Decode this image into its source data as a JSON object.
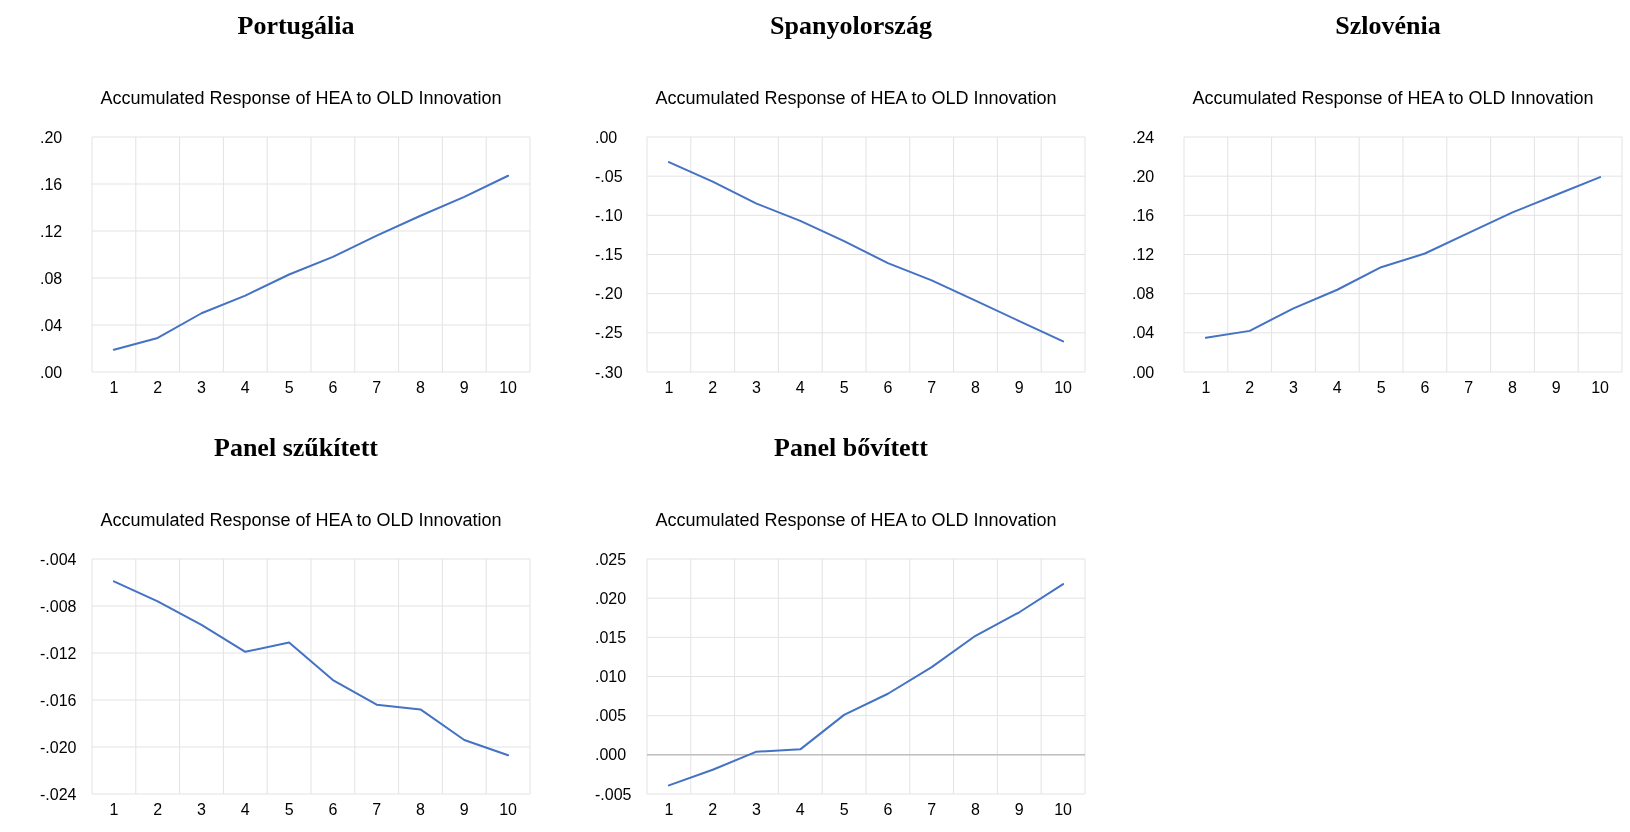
{
  "chart_data": [
    {
      "type": "line",
      "title": "Portugália",
      "subtitle": "Accumulated Response of HEA to OLD Innovation",
      "categories": [
        "1",
        "2",
        "3",
        "4",
        "5",
        "6",
        "7",
        "8",
        "9",
        "10"
      ],
      "series": [
        {
          "color": "#4472c4",
          "values": [
            0.019,
            0.029,
            0.05,
            0.065,
            0.083,
            0.098,
            0.116,
            0.133,
            0.149,
            0.167
          ]
        }
      ],
      "ylim": [
        0,
        0.2
      ],
      "yticks": [
        {
          "value": 0,
          "label": ".00"
        },
        {
          "value": 0.04,
          "label": ".04"
        },
        {
          "value": 0.08,
          "label": ".08"
        },
        {
          "value": 0.12,
          "label": ".12"
        },
        {
          "value": 0.16,
          "label": ".16"
        },
        {
          "value": 0.2,
          "label": ".20"
        }
      ],
      "grid": true
    },
    {
      "type": "line",
      "title": "Spanyolország",
      "subtitle": "Accumulated Response of HEA to OLD Innovation",
      "categories": [
        "1",
        "2",
        "3",
        "4",
        "5",
        "6",
        "7",
        "8",
        "9",
        "10"
      ],
      "series": [
        {
          "color": "#4472c4",
          "values": [
            -0.032,
            -0.057,
            -0.085,
            -0.107,
            -0.133,
            -0.161,
            -0.183,
            -0.209,
            -0.235,
            -0.261
          ]
        }
      ],
      "ylim": [
        -0.3,
        0
      ],
      "yticks": [
        {
          "value": -0.3,
          "label": "-.30"
        },
        {
          "value": -0.25,
          "label": "-.25"
        },
        {
          "value": -0.2,
          "label": "-.20"
        },
        {
          "value": -0.15,
          "label": "-.15"
        },
        {
          "value": -0.1,
          "label": "-.10"
        },
        {
          "value": -0.05,
          "label": "-.05"
        },
        {
          "value": 0,
          "label": ".00"
        }
      ],
      "grid": true
    },
    {
      "type": "line",
      "title": "Szlovénia",
      "subtitle": "Accumulated Response of HEA to OLD Innovation",
      "categories": [
        "1",
        "2",
        "3",
        "4",
        "5",
        "6",
        "7",
        "8",
        "9",
        "10"
      ],
      "series": [
        {
          "color": "#4472c4",
          "values": [
            0.035,
            0.042,
            0.065,
            0.084,
            0.107,
            0.121,
            0.142,
            0.163,
            0.181,
            0.199
          ]
        }
      ],
      "ylim": [
        0,
        0.24
      ],
      "yticks": [
        {
          "value": 0,
          "label": ".00"
        },
        {
          "value": 0.04,
          "label": ".04"
        },
        {
          "value": 0.08,
          "label": ".08"
        },
        {
          "value": 0.12,
          "label": ".12"
        },
        {
          "value": 0.16,
          "label": ".16"
        },
        {
          "value": 0.2,
          "label": ".20"
        },
        {
          "value": 0.24,
          "label": ".24"
        }
      ],
      "grid": true
    },
    {
      "type": "line",
      "title": "Panel szűkített",
      "subtitle": "Accumulated Response of HEA to OLD Innovation",
      "categories": [
        "1",
        "2",
        "3",
        "4",
        "5",
        "6",
        "7",
        "8",
        "9",
        "10"
      ],
      "series": [
        {
          "color": "#4472c4",
          "values": [
            -0.0059,
            -0.0076,
            -0.0096,
            -0.0119,
            -0.0111,
            -0.0143,
            -0.0164,
            -0.0168,
            -0.0194,
            -0.0207
          ]
        }
      ],
      "ylim": [
        -0.024,
        -0.004
      ],
      "yticks": [
        {
          "value": -0.024,
          "label": "-.024"
        },
        {
          "value": -0.02,
          "label": "-.020"
        },
        {
          "value": -0.016,
          "label": "-.016"
        },
        {
          "value": -0.012,
          "label": "-.012"
        },
        {
          "value": -0.008,
          "label": "-.008"
        },
        {
          "value": -0.004,
          "label": "-.004"
        }
      ],
      "grid": true
    },
    {
      "type": "line",
      "title": "Panel bővített",
      "subtitle": "Accumulated Response of HEA to OLD Innovation",
      "categories": [
        "1",
        "2",
        "3",
        "4",
        "5",
        "6",
        "7",
        "8",
        "9",
        "10"
      ],
      "series": [
        {
          "color": "#4472c4",
          "values": [
            -0.0039,
            -0.0019,
            0.0004,
            0.0007,
            0.0051,
            0.0078,
            0.0112,
            0.0152,
            0.0182,
            0.0218
          ]
        }
      ],
      "ylim": [
        -0.005,
        0.025
      ],
      "yticks": [
        {
          "value": -0.005,
          "label": "-.005"
        },
        {
          "value": 0,
          "label": ".000"
        },
        {
          "value": 0.005,
          "label": ".005"
        },
        {
          "value": 0.01,
          "label": ".010"
        },
        {
          "value": 0.015,
          "label": ".015"
        },
        {
          "value": 0.02,
          "label": ".020"
        },
        {
          "value": 0.025,
          "label": ".025"
        }
      ],
      "grid": true
    }
  ]
}
